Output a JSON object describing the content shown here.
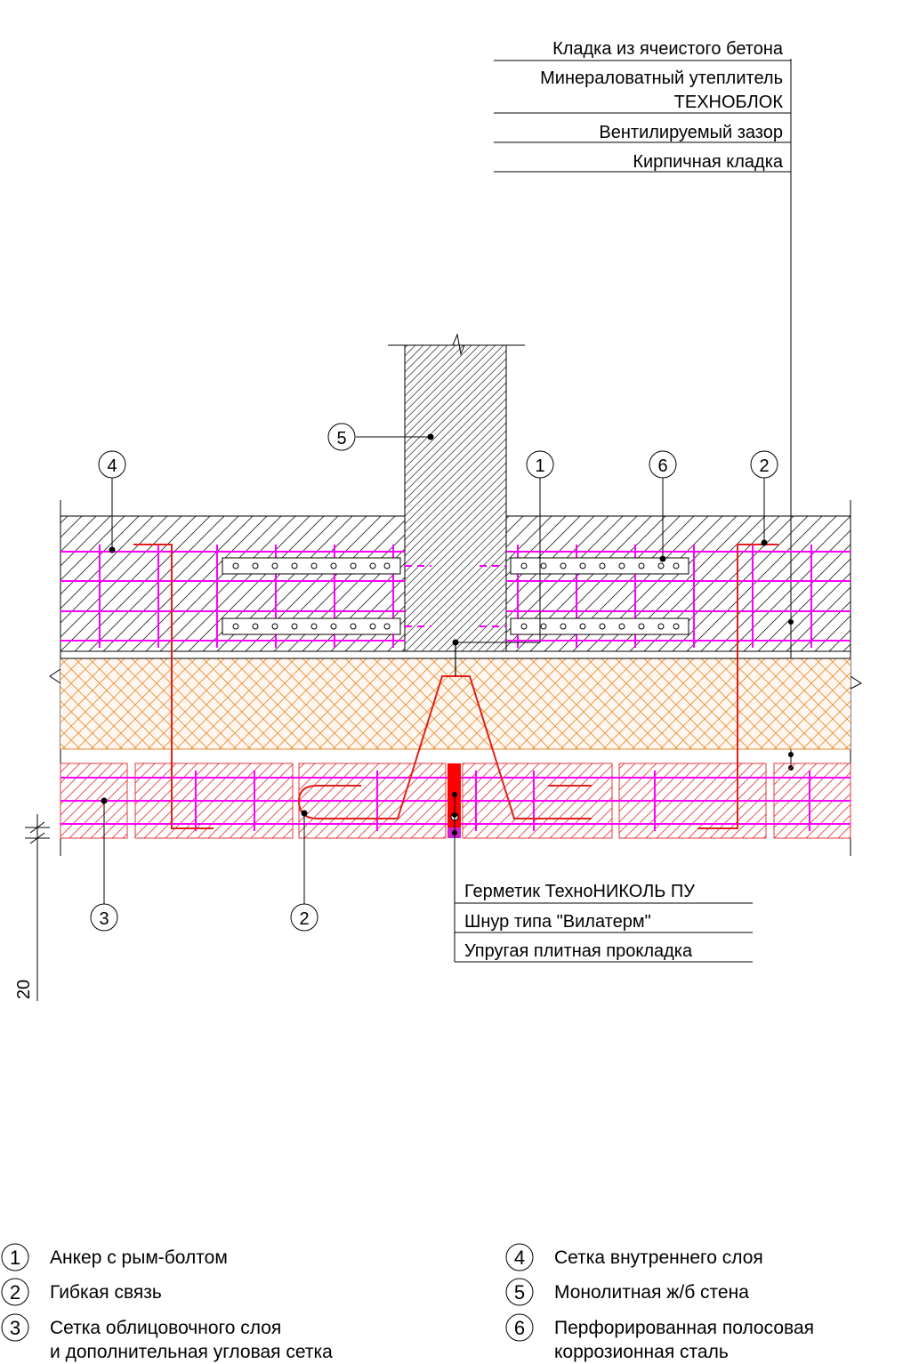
{
  "layer_callout": {
    "lines": [
      "Кладка из ячеистого бетона",
      "Минераловатный утеплитель",
      "ТЕХНОБЛОК",
      "Вентилируемый зазор",
      "Кирпичная кладка"
    ]
  },
  "seal_callout": {
    "lines": [
      "Герметик ТехноНИКОЛЬ ПУ",
      "Шнур типа \"Вилатерм\"",
      "Упругая плитная прокладка"
    ]
  },
  "markers": [
    "1",
    "2",
    "3",
    "4",
    "5",
    "6"
  ],
  "dimension": {
    "value": "20"
  },
  "legend": {
    "items": [
      {
        "num": "1",
        "lines": [
          "Анкер с рым-болтом"
        ]
      },
      {
        "num": "2",
        "lines": [
          "Гибкая связь"
        ]
      },
      {
        "num": "3",
        "lines": [
          "Сетка облицовочного слоя",
          "и дополнительная угловая сетка"
        ]
      },
      {
        "num": "4",
        "lines": [
          "Сетка внутреннего слоя"
        ]
      },
      {
        "num": "5",
        "lines": [
          "Монолитная ж/б стена"
        ]
      },
      {
        "num": "6",
        "lines": [
          "Перфорированная полосовая",
          "коррозионная сталь"
        ]
      }
    ]
  },
  "colors": {
    "mesh": "#ff00ff",
    "tie": "#e0201a",
    "insulation_hatch": "#e68a2e",
    "brick_hatch": "#e03a3a",
    "sealant": "#ff0000"
  }
}
